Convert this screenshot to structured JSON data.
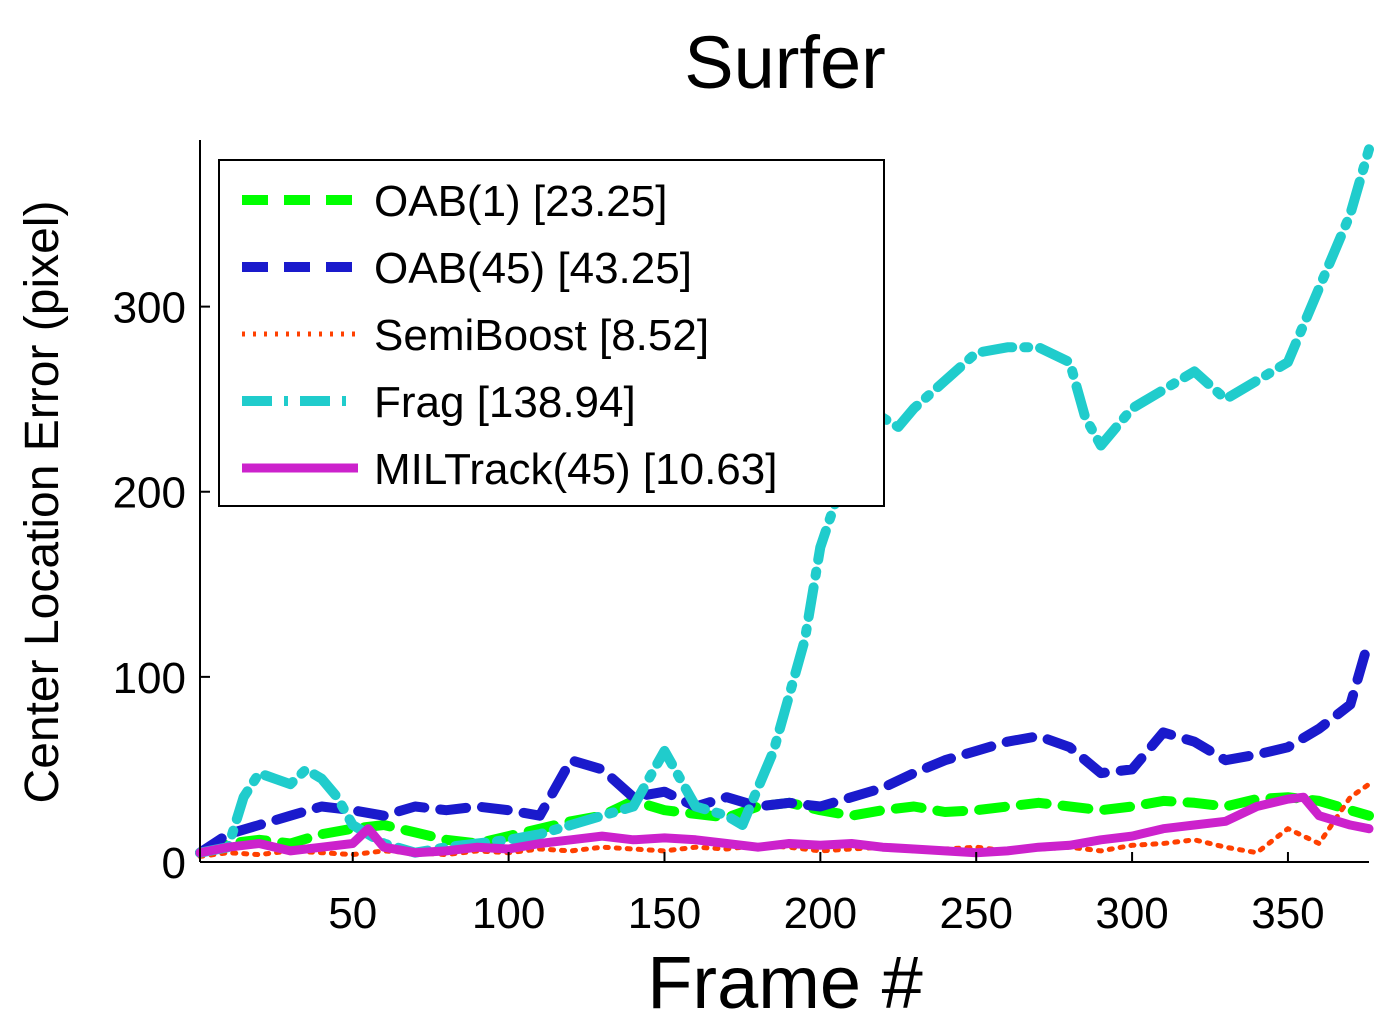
{
  "chart_data": {
    "type": "line",
    "title": "Surfer",
    "xlabel": "Frame #",
    "ylabel": "Center Location Error (pixel)",
    "xlim": [
      1,
      376
    ],
    "ylim": [
      0,
      390
    ],
    "xticks": [
      50,
      100,
      150,
      200,
      250,
      300,
      350
    ],
    "yticks": [
      0,
      100,
      200,
      300
    ],
    "legend_position": "top-left",
    "grid": false,
    "series": [
      {
        "name": "OAB(1) [23.25]",
        "color": "#00ff00",
        "style": "dashed",
        "x": [
          1,
          10,
          20,
          30,
          40,
          50,
          60,
          70,
          80,
          90,
          100,
          110,
          120,
          130,
          140,
          150,
          160,
          170,
          180,
          190,
          200,
          210,
          220,
          230,
          240,
          250,
          260,
          270,
          280,
          290,
          300,
          310,
          320,
          330,
          340,
          350,
          360,
          370,
          376
        ],
        "y": [
          5,
          10,
          12,
          10,
          15,
          18,
          20,
          16,
          12,
          10,
          14,
          18,
          22,
          25,
          33,
          28,
          26,
          24,
          30,
          32,
          28,
          25,
          28,
          30,
          27,
          28,
          30,
          32,
          30,
          28,
          30,
          33,
          32,
          30,
          34,
          35,
          33,
          28,
          25
        ]
      },
      {
        "name": "OAB(45) [43.25]",
        "color": "#1a1acc",
        "style": "dashed",
        "x": [
          1,
          10,
          20,
          30,
          40,
          50,
          60,
          70,
          80,
          90,
          100,
          110,
          120,
          130,
          140,
          150,
          160,
          170,
          180,
          190,
          200,
          210,
          220,
          230,
          240,
          250,
          260,
          270,
          280,
          290,
          300,
          310,
          320,
          330,
          340,
          350,
          360,
          370,
          376
        ],
        "y": [
          5,
          15,
          20,
          25,
          30,
          28,
          25,
          30,
          28,
          30,
          28,
          25,
          55,
          50,
          35,
          38,
          30,
          35,
          30,
          32,
          30,
          35,
          40,
          48,
          55,
          60,
          65,
          68,
          62,
          48,
          50,
          70,
          65,
          55,
          58,
          62,
          72,
          85,
          120
        ]
      },
      {
        "name": "SemiBoost [8.52]",
        "color": "#ff4000",
        "style": "dotted",
        "x": [
          1,
          10,
          20,
          30,
          40,
          50,
          60,
          70,
          80,
          90,
          100,
          110,
          120,
          130,
          140,
          150,
          160,
          170,
          180,
          190,
          200,
          210,
          220,
          230,
          240,
          250,
          260,
          270,
          280,
          290,
          300,
          310,
          320,
          330,
          340,
          350,
          360,
          370,
          376
        ],
        "y": [
          3,
          5,
          4,
          6,
          5,
          4,
          6,
          5,
          4,
          6,
          5,
          7,
          6,
          8,
          7,
          6,
          8,
          7,
          9,
          8,
          6,
          7,
          8,
          6,
          7,
          8,
          6,
          7,
          8,
          6,
          9,
          10,
          12,
          8,
          5,
          18,
          10,
          35,
          42
        ]
      },
      {
        "name": "Frag [138.94]",
        "color": "#20cccc",
        "style": "dashdot",
        "x": [
          1,
          10,
          15,
          20,
          25,
          30,
          35,
          40,
          45,
          50,
          60,
          70,
          80,
          90,
          100,
          110,
          120,
          130,
          140,
          145,
          150,
          160,
          170,
          175,
          180,
          185,
          190,
          195,
          200,
          205,
          210,
          215,
          220,
          225,
          230,
          240,
          250,
          260,
          270,
          280,
          285,
          290,
          300,
          310,
          320,
          330,
          340,
          350,
          355,
          360,
          370,
          376
        ],
        "y": [
          5,
          8,
          35,
          48,
          45,
          42,
          50,
          45,
          35,
          20,
          10,
          5,
          8,
          10,
          12,
          15,
          20,
          25,
          30,
          45,
          60,
          30,
          25,
          20,
          40,
          60,
          90,
          120,
          170,
          195,
          215,
          230,
          240,
          235,
          245,
          260,
          275,
          278,
          278,
          270,
          240,
          225,
          245,
          255,
          265,
          250,
          260,
          270,
          290,
          310,
          350,
          385
        ]
      },
      {
        "name": "MILTrack(45) [10.63]",
        "color": "#cc22cc",
        "style": "solid",
        "x": [
          1,
          10,
          20,
          30,
          40,
          50,
          55,
          60,
          70,
          80,
          90,
          100,
          110,
          120,
          130,
          140,
          150,
          160,
          170,
          180,
          190,
          200,
          210,
          220,
          230,
          240,
          250,
          260,
          270,
          280,
          290,
          300,
          310,
          320,
          330,
          340,
          350,
          355,
          360,
          370,
          376
        ],
        "y": [
          5,
          8,
          10,
          6,
          8,
          10,
          18,
          8,
          5,
          6,
          8,
          7,
          10,
          12,
          14,
          12,
          13,
          12,
          10,
          8,
          10,
          9,
          10,
          8,
          7,
          6,
          5,
          6,
          8,
          9,
          12,
          14,
          18,
          20,
          22,
          30,
          34,
          35,
          25,
          20,
          18
        ]
      }
    ]
  }
}
